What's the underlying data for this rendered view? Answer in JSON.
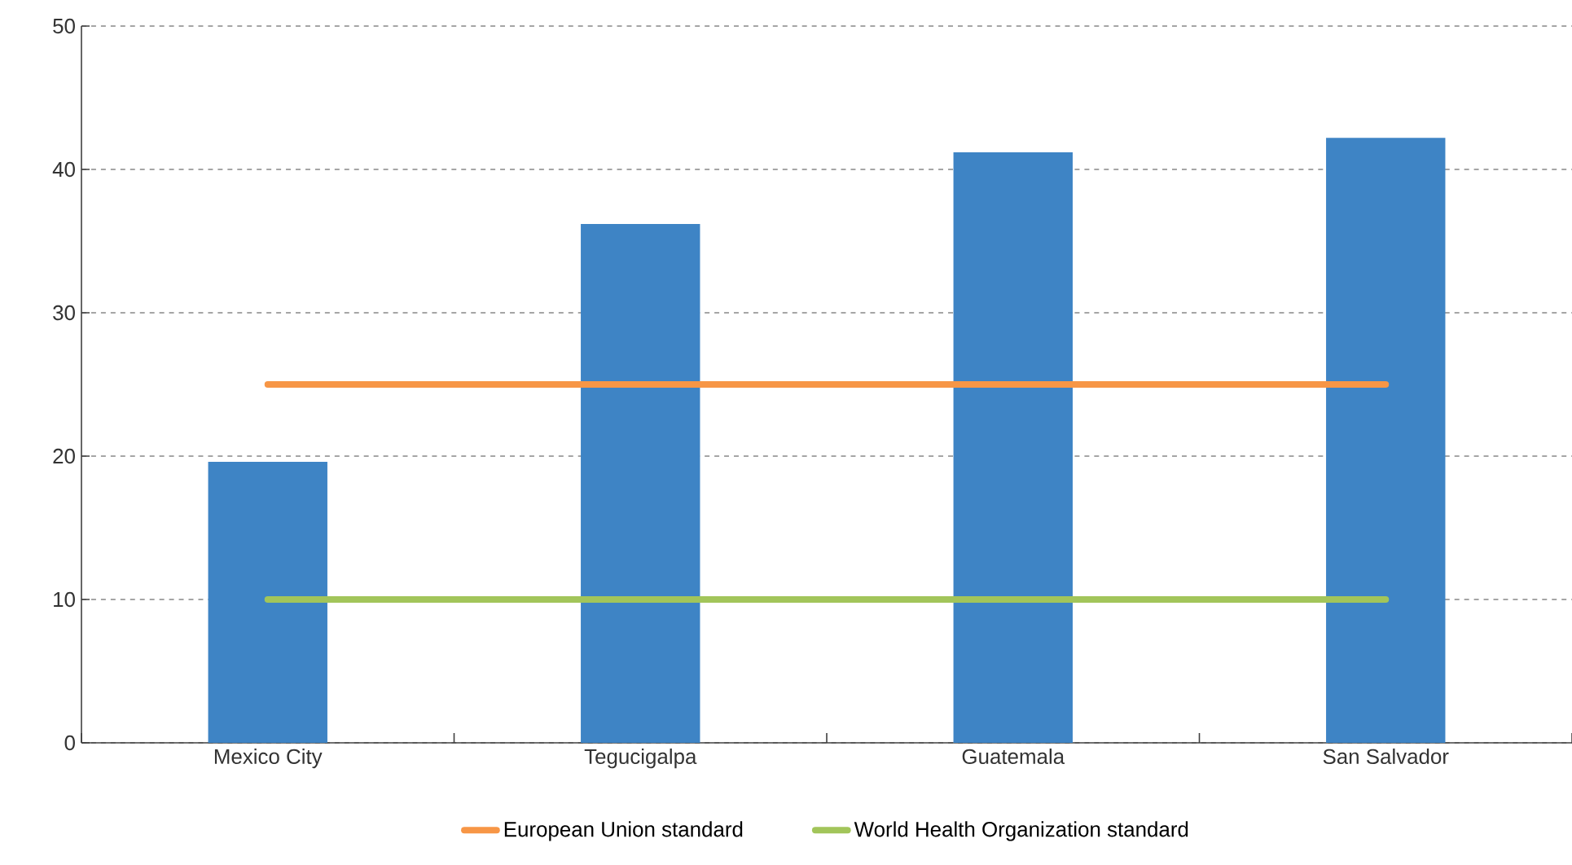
{
  "chart_data": {
    "type": "bar",
    "categories": [
      "Mexico City",
      "Tegucigalpa",
      "Guatemala",
      "San Salvador"
    ],
    "series": [
      {
        "color": "#3e84c5",
        "values": [
          19.6,
          36.2,
          41.2,
          42.2
        ]
      },
      {
        "type": "line",
        "name": "European Union standard",
        "color": "#f79646",
        "values": [
          25,
          25,
          25,
          25
        ]
      },
      {
        "type": "line",
        "name": "World Health Organization standard",
        "color": "#a2c55a",
        "values": [
          10,
          10,
          10,
          10
        ]
      }
    ],
    "ylim": [
      0,
      50
    ],
    "yticks": [
      0,
      10,
      20,
      30,
      40,
      50
    ],
    "grid": "y",
    "legend": "bottom",
    "marker": "none",
    "line_style": "solid"
  }
}
